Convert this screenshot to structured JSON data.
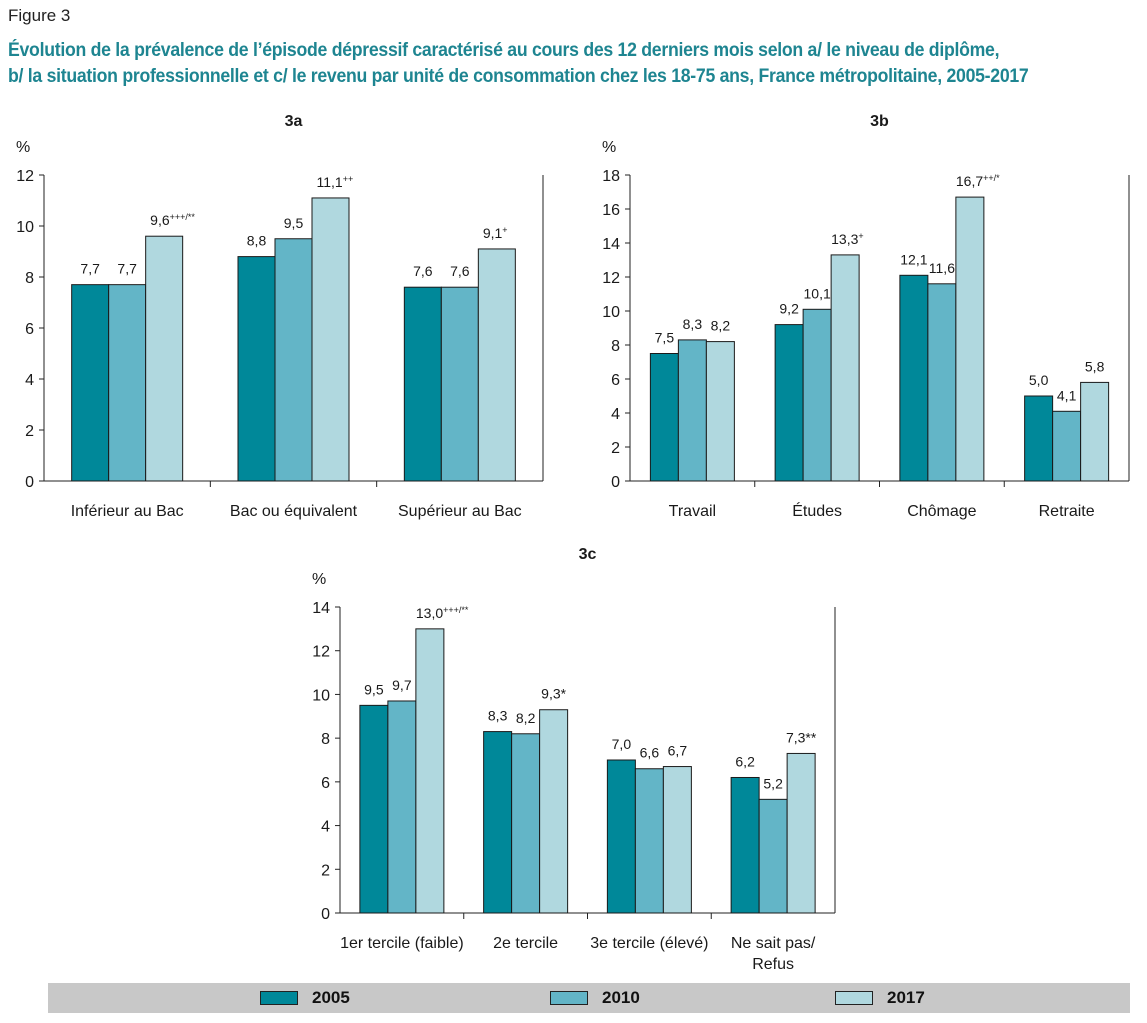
{
  "figure_label": "Figure 3",
  "title_line1": "Évolution de la prévalence de l’épisode dépressif caractérisé au cours des 12 derniers mois selon a/ le niveau de diplôme,",
  "title_line2": "b/ la situation professionnelle et c/ le revenu par unité de consommation chez les 18-75 ans, France métropolitaine, 2005-2017",
  "colors": {
    "2005": "#008899",
    "2010": "#63b5c7",
    "2017": "#b0d8df"
  },
  "legend": [
    {
      "label": "2005",
      "color": "#008899"
    },
    {
      "label": "2010",
      "color": "#63b5c7"
    },
    {
      "label": "2017",
      "color": "#b0d8df"
    }
  ],
  "chart_data": [
    {
      "id": "3a",
      "type": "bar",
      "title": "3a",
      "ylabel": "%",
      "ylim": [
        0,
        12
      ],
      "yticks": [
        0,
        2,
        4,
        6,
        8,
        10,
        12
      ],
      "categories": [
        [
          "Inférieur au Bac"
        ],
        [
          "Bac ou équivalent"
        ],
        [
          "Supérieur au Bac"
        ]
      ],
      "series": [
        {
          "name": "2005",
          "values": [
            7.7,
            8.8,
            7.6
          ]
        },
        {
          "name": "2010",
          "values": [
            7.7,
            9.5,
            7.6
          ]
        },
        {
          "name": "2017",
          "values": [
            9.6,
            11.1,
            9.1
          ]
        }
      ],
      "labels": [
        [
          {
            "v": "7,7",
            "s": ""
          },
          {
            "v": "7,7",
            "s": ""
          },
          {
            "v": "9,6",
            "s": "+++/**"
          }
        ],
        [
          {
            "v": "8,8",
            "s": ""
          },
          {
            "v": "9,5",
            "s": ""
          },
          {
            "v": "11,1",
            "s": "++"
          }
        ],
        [
          {
            "v": "7,6",
            "s": ""
          },
          {
            "v": "7,6",
            "s": ""
          },
          {
            "v": "9,1",
            "s": "+"
          }
        ]
      ]
    },
    {
      "id": "3b",
      "type": "bar",
      "title": "3b",
      "ylabel": "%",
      "ylim": [
        0,
        18
      ],
      "yticks": [
        0,
        2,
        4,
        6,
        8,
        10,
        12,
        14,
        16,
        18
      ],
      "categories": [
        [
          "Travail"
        ],
        [
          "Études"
        ],
        [
          "Chômage"
        ],
        [
          "Retraite"
        ]
      ],
      "series": [
        {
          "name": "2005",
          "values": [
            7.5,
            9.2,
            12.1,
            5.0
          ]
        },
        {
          "name": "2010",
          "values": [
            8.3,
            10.1,
            11.6,
            4.1
          ]
        },
        {
          "name": "2017",
          "values": [
            8.2,
            13.3,
            16.7,
            5.8
          ]
        }
      ],
      "labels": [
        [
          {
            "v": "7,5",
            "s": ""
          },
          {
            "v": "8,3",
            "s": ""
          },
          {
            "v": "8,2",
            "s": ""
          }
        ],
        [
          {
            "v": "9,2",
            "s": ""
          },
          {
            "v": "10,1",
            "s": ""
          },
          {
            "v": "13,3",
            "s": "+"
          }
        ],
        [
          {
            "v": "12,1",
            "s": ""
          },
          {
            "v": "11,6",
            "s": ""
          },
          {
            "v": "16,7",
            "s": "++/*"
          }
        ],
        [
          {
            "v": "5,0",
            "s": ""
          },
          {
            "v": "4,1",
            "s": ""
          },
          {
            "v": "5,8",
            "s": ""
          }
        ]
      ]
    },
    {
      "id": "3c",
      "type": "bar",
      "title": "3c",
      "ylabel": "%",
      "ylim": [
        0,
        14
      ],
      "yticks": [
        0,
        2,
        4,
        6,
        8,
        10,
        12,
        14
      ],
      "categories": [
        [
          "1er tercile (faible)"
        ],
        [
          "2e tercile"
        ],
        [
          "3e tercile (élevé)"
        ],
        [
          "Ne sait pas/",
          "Refus"
        ]
      ],
      "series": [
        {
          "name": "2005",
          "values": [
            9.5,
            8.3,
            7.0,
            6.2
          ]
        },
        {
          "name": "2010",
          "values": [
            9.7,
            8.2,
            6.6,
            5.2
          ]
        },
        {
          "name": "2017",
          "values": [
            13.0,
            9.3,
            6.7,
            7.3
          ]
        }
      ],
      "labels": [
        [
          {
            "v": "9,5",
            "s": ""
          },
          {
            "v": "9,7",
            "s": ""
          },
          {
            "v": "13,0",
            "s": "+++/**"
          }
        ],
        [
          {
            "v": "8,3",
            "s": ""
          },
          {
            "v": "8,2",
            "s": ""
          },
          {
            "v": "9,3*",
            "s": ""
          }
        ],
        [
          {
            "v": "7,0",
            "s": ""
          },
          {
            "v": "6,6",
            "s": ""
          },
          {
            "v": "6,7",
            "s": ""
          }
        ],
        [
          {
            "v": "6,2",
            "s": ""
          },
          {
            "v": "5,2",
            "s": ""
          },
          {
            "v": "7,3**",
            "s": ""
          }
        ]
      ]
    }
  ]
}
